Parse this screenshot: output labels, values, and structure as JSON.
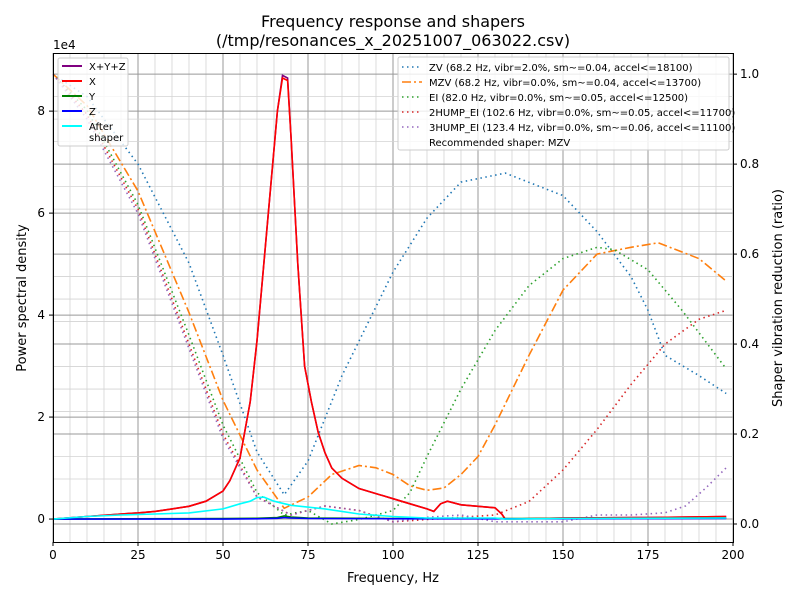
{
  "chart_data": {
    "type": "line",
    "title": "Frequency response and shapers",
    "subtitle": "(/tmp/resonances_x_20251007_063022.csv)",
    "xlabel": "Frequency, Hz",
    "ylabel": "Power spectral density",
    "ylabel_right": "Shaper vibration reduction (ratio)",
    "y_offset_label": "1e4",
    "xlim": [
      0,
      200
    ],
    "ylim": [
      -4500,
      91400
    ],
    "ylim_right": [
      -0.04,
      1.047
    ],
    "x_ticks": [
      "0",
      "25",
      "50",
      "75",
      "100",
      "125",
      "150",
      "175",
      "200"
    ],
    "y_ticks": [
      "0",
      "2",
      "4",
      "6",
      "8"
    ],
    "y_ticks_right": [
      "0.0",
      "0.2",
      "0.4",
      "0.6",
      "0.8",
      "1.0"
    ],
    "grid": true,
    "psd_series": [
      {
        "name": "X+Y+Z",
        "color": "#800080",
        "x": [
          0,
          10,
          20,
          25,
          30,
          35,
          40,
          45,
          50,
          52,
          55,
          58,
          60,
          62,
          64,
          66,
          67.5,
          69,
          70,
          72,
          74,
          76,
          78,
          80,
          82,
          85,
          90,
          95,
          100,
          105,
          110,
          112,
          114,
          116,
          120,
          125,
          130,
          132,
          133,
          150,
          175,
          198
        ],
        "y": [
          0,
          500,
          1000,
          1200,
          1500,
          2000,
          2500,
          3500,
          5500,
          7500,
          12000,
          23000,
          35000,
          50000,
          65000,
          80000,
          87000,
          86500,
          75000,
          50000,
          30000,
          23000,
          17000,
          13000,
          10000,
          8000,
          6000,
          5000,
          4000,
          3000,
          2000,
          1500,
          3000,
          3500,
          2800,
          2500,
          2200,
          1000,
          0,
          200,
          300,
          500
        ]
      },
      {
        "name": "X",
        "color": "#ff0000",
        "x": [
          0,
          10,
          20,
          25,
          30,
          35,
          40,
          45,
          50,
          52,
          55,
          58,
          60,
          62,
          64,
          66,
          67.5,
          69,
          70,
          72,
          74,
          76,
          78,
          80,
          82,
          85,
          90,
          95,
          100,
          105,
          110,
          112,
          114,
          116,
          120,
          125,
          130,
          132,
          133,
          150,
          175,
          198
        ],
        "y": [
          0,
          500,
          1000,
          1200,
          1500,
          2000,
          2500,
          3500,
          5500,
          7500,
          12000,
          23000,
          35000,
          50000,
          65000,
          80000,
          86500,
          86000,
          75000,
          50000,
          30000,
          23000,
          17000,
          13000,
          10000,
          8000,
          6000,
          5000,
          4000,
          3000,
          2000,
          1500,
          3000,
          3500,
          2800,
          2500,
          2200,
          1000,
          0,
          200,
          300,
          500
        ]
      },
      {
        "name": "Y",
        "color": "#008000",
        "x": [
          0,
          50,
          60,
          66,
          68,
          70,
          75,
          100,
          150,
          198
        ],
        "y": [
          0,
          100,
          150,
          300,
          600,
          400,
          200,
          100,
          100,
          200
        ]
      },
      {
        "name": "Z",
        "color": "#0000ff",
        "x": [
          0,
          50,
          60,
          66,
          68,
          70,
          75,
          100,
          150,
          198
        ],
        "y": [
          0,
          0,
          50,
          150,
          300,
          200,
          100,
          50,
          50,
          100
        ]
      },
      {
        "name": "After\nshaper",
        "color": "#00ffff",
        "x": [
          0,
          10,
          20,
          30,
          40,
          50,
          55,
          58,
          60,
          62,
          65,
          70,
          80,
          90,
          100,
          110,
          130,
          133,
          150,
          198
        ],
        "y": [
          0,
          500,
          800,
          1000,
          1200,
          2000,
          3000,
          3500,
          4200,
          4300,
          3500,
          2700,
          2000,
          1000,
          500,
          200,
          200,
          0,
          100,
          200
        ]
      }
    ],
    "shaper_series": [
      {
        "name": "ZV (68.2 Hz, vibr=2.0%, sm~=0.04, accel<=18100)",
        "color": "#1f77b4",
        "dash": "1.5,3.5",
        "x": [
          0,
          10,
          25,
          40,
          50,
          60,
          68,
          75,
          85,
          100,
          110,
          120,
          133,
          150,
          160,
          170,
          175,
          180,
          190,
          198
        ],
        "y": [
          1.0,
          0.95,
          0.8,
          0.58,
          0.375,
          0.16,
          0.065,
          0.14,
          0.33,
          0.56,
          0.68,
          0.76,
          0.78,
          0.73,
          0.65,
          0.55,
          0.475,
          0.375,
          0.33,
          0.29
        ]
      },
      {
        "name": "MZV (68.2 Hz, vibr=0.0%, sm~=0.04, accel<=13700)",
        "color": "#ff7f0e",
        "dash": "9,3,2,3",
        "x": [
          0,
          10,
          25,
          40,
          50,
          60,
          68,
          75,
          82,
          90,
          95,
          100,
          105,
          110,
          115,
          120,
          125,
          130,
          140,
          150,
          160,
          170,
          178,
          190,
          198
        ],
        "y": [
          1.0,
          0.93,
          0.74,
          0.47,
          0.275,
          0.12,
          0.035,
          0.06,
          0.11,
          0.13,
          0.125,
          0.11,
          0.085,
          0.075,
          0.08,
          0.11,
          0.15,
          0.22,
          0.375,
          0.52,
          0.6,
          0.615,
          0.625,
          0.59,
          0.54
        ]
      },
      {
        "name": "EI (82.0 Hz, vibr=0.0%, sm~=0.05, accel<=12500)",
        "color": "#2ca02c",
        "dash": "1.5,3.5",
        "x": [
          0,
          10,
          25,
          40,
          50,
          60,
          68,
          75,
          82,
          90,
          100,
          105,
          110,
          120,
          130,
          140,
          150,
          160,
          165,
          175,
          185,
          198
        ],
        "y": [
          1.0,
          0.92,
          0.71,
          0.42,
          0.22,
          0.07,
          0.02,
          0.03,
          0.0,
          0.01,
          0.03,
          0.07,
          0.15,
          0.3,
          0.43,
          0.53,
          0.59,
          0.615,
          0.61,
          0.565,
          0.475,
          0.345
        ]
      },
      {
        "name": "2HUMP_EI (102.6 Hz, vibr=0.0%, sm~=0.05, accel<=11700)",
        "color": "#d62728",
        "dash": "1.5,3.5",
        "x": [
          0,
          10,
          25,
          40,
          50,
          60,
          70,
          80,
          90,
          100,
          110,
          120,
          130,
          140,
          150,
          160,
          170,
          180,
          190,
          198
        ],
        "y": [
          1.0,
          0.91,
          0.7,
          0.4,
          0.2,
          0.06,
          0.02,
          0.04,
          0.03,
          0.005,
          0.01,
          0.015,
          0.02,
          0.05,
          0.12,
          0.21,
          0.31,
          0.4,
          0.455,
          0.475
        ]
      },
      {
        "name": "3HUMP_EI (123.4 Hz, vibr=0.0%, sm~=0.06, accel<=11100)",
        "color": "#9467bd",
        "dash": "1.5,3.5",
        "x": [
          0,
          10,
          25,
          40,
          50,
          60,
          70,
          80,
          90,
          100,
          110,
          120,
          130,
          150,
          160,
          170,
          180,
          186,
          192,
          198
        ],
        "y": [
          1.0,
          0.9,
          0.69,
          0.39,
          0.19,
          0.06,
          0.02,
          0.04,
          0.03,
          0.005,
          0.015,
          0.02,
          0.005,
          0.005,
          0.02,
          0.02,
          0.025,
          0.04,
          0.08,
          0.125
        ]
      }
    ],
    "recommended": "Recommended shaper: MZV",
    "legend_left_placement": "top-left",
    "legend_right_placement": "top-right"
  }
}
